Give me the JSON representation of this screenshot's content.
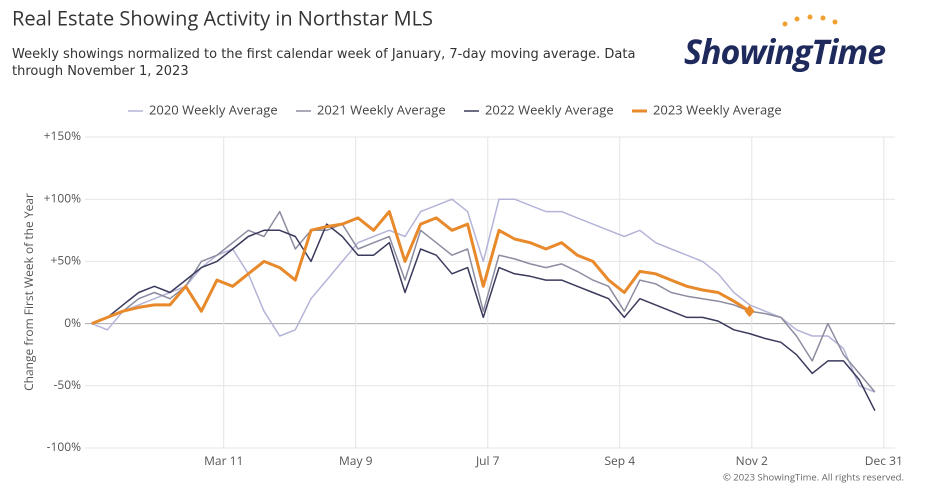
{
  "chart_data": {
    "type": "line",
    "title": "Real Estate Showing Activity in Northstar MLS",
    "subtitle": "Weekly showings normalized to the first calendar week of January, 7-day moving average. Data through November 1, 2023",
    "y_label": "Change from First Week of the Year",
    "logo": "ShowingTime",
    "copyright": "© 2023 ShowingTime. All rights reserved.",
    "legend": "top",
    "grid": true,
    "xlim": [
      8,
      370
    ],
    "xticks": [
      {
        "value": 70,
        "label": "Mar 11"
      },
      {
        "value": 129,
        "label": "May 9"
      },
      {
        "value": 188,
        "label": "Jul 7"
      },
      {
        "value": 247,
        "label": "Sep 4"
      },
      {
        "value": 306,
        "label": "Nov 2"
      },
      {
        "value": 365,
        "label": "Dec 31"
      }
    ],
    "ylim": [
      -100,
      150
    ],
    "yticks": [
      {
        "value": -100,
        "label": "-100%"
      },
      {
        "value": -50,
        "label": "-50%"
      },
      {
        "value": 0,
        "label": "0%"
      },
      {
        "value": 50,
        "label": "+50%"
      },
      {
        "value": 100,
        "label": "+100%"
      },
      {
        "value": 150,
        "label": "+150%"
      }
    ],
    "x": [
      11,
      18,
      25,
      32,
      39,
      46,
      53,
      60,
      67,
      74,
      81,
      88,
      95,
      102,
      109,
      116,
      123,
      130,
      137,
      144,
      151,
      158,
      165,
      172,
      179,
      186,
      193,
      200,
      207,
      214,
      221,
      228,
      235,
      242,
      249,
      256,
      263,
      270,
      277,
      284,
      291,
      298,
      305,
      312,
      319,
      326,
      333,
      340,
      347,
      354,
      361
    ],
    "series": [
      {
        "name": "2020 Weekly Average",
        "color": "#b4b4d8",
        "width": 1.5,
        "values": [
          0,
          -5,
          10,
          15,
          20,
          25,
          30,
          45,
          55,
          60,
          40,
          10,
          -10,
          -5,
          20,
          35,
          50,
          65,
          70,
          75,
          70,
          90,
          95,
          100,
          90,
          50,
          100,
          100,
          95,
          90,
          90,
          85,
          80,
          75,
          70,
          75,
          65,
          60,
          55,
          50,
          40,
          25,
          15,
          10,
          5,
          -5,
          -10,
          -10,
          -20,
          -50,
          -55
        ]
      },
      {
        "name": "2021 Weekly Average",
        "color": "#8c8ca0",
        "width": 1.5,
        "values": [
          0,
          5,
          10,
          20,
          25,
          20,
          30,
          50,
          55,
          65,
          75,
          70,
          90,
          60,
          75,
          75,
          80,
          60,
          65,
          70,
          35,
          75,
          65,
          55,
          60,
          10,
          55,
          52,
          48,
          45,
          48,
          42,
          35,
          30,
          10,
          35,
          32,
          25,
          22,
          20,
          18,
          15,
          10,
          8,
          5,
          -10,
          -30,
          0,
          -25,
          -40,
          -55
        ]
      },
      {
        "name": "2022 Weekly Average",
        "color": "#3a3a5c",
        "width": 1.5,
        "values": [
          0,
          5,
          15,
          25,
          30,
          25,
          35,
          45,
          50,
          60,
          70,
          75,
          75,
          70,
          50,
          80,
          70,
          55,
          55,
          65,
          25,
          60,
          55,
          40,
          45,
          5,
          45,
          40,
          38,
          35,
          35,
          30,
          25,
          20,
          5,
          20,
          15,
          10,
          5,
          5,
          2,
          -5,
          -8,
          -12,
          -15,
          -25,
          -40,
          -30,
          -30,
          -45,
          -70
        ]
      },
      {
        "name": "2023 Weekly Average",
        "color": "#e8892b",
        "width": 3,
        "end_marker": true,
        "values": [
          0,
          5,
          10,
          13,
          15,
          15,
          30,
          10,
          35,
          30,
          40,
          50,
          45,
          35,
          75,
          78,
          80,
          85,
          75,
          90,
          50,
          80,
          85,
          75,
          80,
          30,
          75,
          68,
          65,
          60,
          65,
          55,
          50,
          35,
          25,
          42,
          40,
          35,
          30,
          27,
          25,
          18,
          10,
          null,
          null,
          null,
          null,
          null,
          null,
          null,
          null
        ]
      }
    ]
  }
}
